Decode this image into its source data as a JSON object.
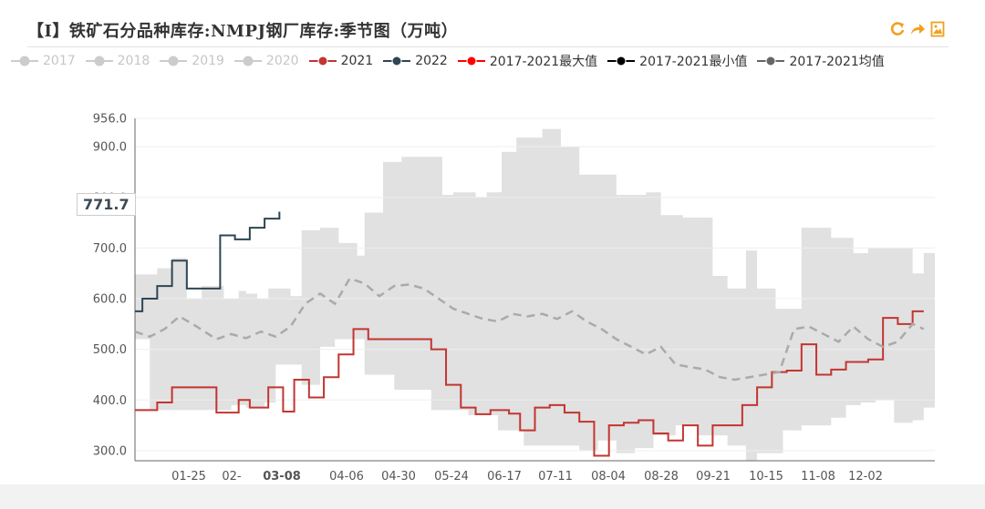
{
  "title": "【I】铁矿石分品种库存:NMPJ钢厂库存:季节图（万吨）",
  "toolbar": {
    "icons": [
      "refresh-icon",
      "share-icon",
      "save-image-icon"
    ],
    "color": "#f0a020"
  },
  "legend": [
    {
      "name": "2017",
      "color": "#cccccc",
      "active": false
    },
    {
      "name": "2018",
      "color": "#cccccc",
      "active": false
    },
    {
      "name": "2019",
      "color": "#cccccc",
      "active": false
    },
    {
      "name": "2020",
      "color": "#cccccc",
      "active": false
    },
    {
      "name": "2021",
      "color": "#c23531",
      "active": true
    },
    {
      "name": "2022",
      "color": "#2f4554",
      "active": true
    },
    {
      "name": "2017-2021最大值",
      "color": "#ff0000",
      "active": true
    },
    {
      "name": "2017-2021最小值",
      "color": "#000000",
      "active": true
    },
    {
      "name": "2017-2021均值",
      "color": "#666666",
      "active": true
    }
  ],
  "tooltip": {
    "value": "771.7"
  },
  "chart_data": {
    "type": "line",
    "x_axis": {
      "tick_labels": [
        "01-25",
        "02-",
        "03-08",
        "04-06",
        "04-30",
        "05-24",
        "06-17",
        "07-11",
        "08-04",
        "08-28",
        "09-21",
        "10-15",
        "11-08",
        "12-02"
      ],
      "highlight": "03-08"
    },
    "y_axis": {
      "ylim": [
        280,
        956
      ],
      "ticks": [
        300.0,
        400.0,
        500.0,
        600.0,
        700.0,
        800.0,
        900.0,
        956.0
      ]
    },
    "band_max": [
      [
        0,
        648
      ],
      [
        6,
        660
      ],
      [
        10,
        680
      ],
      [
        14,
        600
      ],
      [
        18,
        625
      ],
      [
        24,
        600
      ],
      [
        28,
        615
      ],
      [
        30,
        610
      ],
      [
        33,
        600
      ],
      [
        36,
        620
      ],
      [
        42,
        605
      ],
      [
        45,
        735
      ],
      [
        50,
        740
      ],
      [
        55,
        710
      ],
      [
        60,
        685
      ],
      [
        62,
        770
      ],
      [
        67,
        870
      ],
      [
        72,
        880
      ],
      [
        78,
        880
      ],
      [
        83,
        805
      ],
      [
        86,
        810
      ],
      [
        92,
        800
      ],
      [
        95,
        810
      ],
      [
        99,
        890
      ],
      [
        103,
        918
      ],
      [
        110,
        935
      ],
      [
        115,
        900
      ],
      [
        120,
        845
      ],
      [
        126,
        845
      ],
      [
        130,
        805
      ],
      [
        138,
        810
      ],
      [
        142,
        765
      ],
      [
        148,
        760
      ],
      [
        156,
        645
      ],
      [
        160,
        620
      ],
      [
        165,
        695
      ],
      [
        168,
        620
      ],
      [
        173,
        580
      ],
      [
        180,
        740
      ],
      [
        188,
        720
      ],
      [
        194,
        690
      ],
      [
        198,
        700
      ],
      [
        205,
        700
      ],
      [
        210,
        650
      ],
      [
        213,
        690
      ],
      [
        216,
        690
      ]
    ],
    "band_min": [
      [
        0,
        520
      ],
      [
        4,
        380
      ],
      [
        10,
        380
      ],
      [
        20,
        380
      ],
      [
        26,
        390
      ],
      [
        30,
        385
      ],
      [
        35,
        395
      ],
      [
        38,
        470
      ],
      [
        45,
        430
      ],
      [
        50,
        505
      ],
      [
        54,
        520
      ],
      [
        62,
        450
      ],
      [
        70,
        420
      ],
      [
        80,
        380
      ],
      [
        90,
        370
      ],
      [
        98,
        340
      ],
      [
        105,
        310
      ],
      [
        110,
        310
      ],
      [
        120,
        300
      ],
      [
        125,
        320
      ],
      [
        130,
        295
      ],
      [
        135,
        305
      ],
      [
        140,
        330
      ],
      [
        146,
        350
      ],
      [
        152,
        330
      ],
      [
        160,
        310
      ],
      [
        165,
        280
      ],
      [
        168,
        295
      ],
      [
        175,
        340
      ],
      [
        180,
        350
      ],
      [
        188,
        365
      ],
      [
        192,
        390
      ],
      [
        196,
        395
      ],
      [
        200,
        400
      ],
      [
        205,
        355
      ],
      [
        210,
        360
      ],
      [
        213,
        385
      ],
      [
        216,
        400
      ]
    ],
    "series": [
      {
        "name": "2021",
        "color": "#c23531",
        "points": [
          [
            0,
            380
          ],
          [
            6,
            395
          ],
          [
            10,
            425
          ],
          [
            22,
            375
          ],
          [
            28,
            400
          ],
          [
            31,
            385
          ],
          [
            36,
            425
          ],
          [
            40,
            377
          ],
          [
            43,
            440
          ],
          [
            47,
            405
          ],
          [
            51,
            445
          ],
          [
            55,
            490
          ],
          [
            59,
            540
          ],
          [
            63,
            520
          ],
          [
            72,
            520
          ],
          [
            80,
            500
          ],
          [
            84,
            430
          ],
          [
            88,
            385
          ],
          [
            92,
            372
          ],
          [
            96,
            380
          ],
          [
            101,
            373
          ],
          [
            104,
            340
          ],
          [
            108,
            385
          ],
          [
            112,
            390
          ],
          [
            116,
            375
          ],
          [
            120,
            357
          ],
          [
            124,
            290
          ],
          [
            128,
            350
          ],
          [
            132,
            355
          ],
          [
            136,
            360
          ],
          [
            140,
            334
          ],
          [
            144,
            320
          ],
          [
            148,
            350
          ],
          [
            152,
            310
          ],
          [
            156,
            350
          ],
          [
            164,
            390
          ],
          [
            168,
            425
          ],
          [
            172,
            455
          ],
          [
            176,
            458
          ],
          [
            180,
            510
          ],
          [
            184,
            450
          ],
          [
            188,
            460
          ],
          [
            192,
            475
          ],
          [
            198,
            480
          ],
          [
            202,
            562
          ],
          [
            206,
            550
          ],
          [
            210,
            575
          ],
          [
            213,
            575
          ]
        ]
      },
      {
        "name": "2022",
        "color": "#2f4554",
        "points": [
          [
            0,
            575
          ],
          [
            2,
            600
          ],
          [
            6,
            625
          ],
          [
            10,
            675
          ],
          [
            14,
            620
          ],
          [
            22,
            620
          ],
          [
            23,
            725
          ],
          [
            27,
            717
          ],
          [
            31,
            740
          ],
          [
            35,
            758
          ],
          [
            39,
            771.7
          ]
        ]
      },
      {
        "name": "2017-2021均值",
        "color": "#aaaaaa",
        "points": [
          [
            0,
            535
          ],
          [
            4,
            525
          ],
          [
            8,
            540
          ],
          [
            12,
            565
          ],
          [
            16,
            548
          ],
          [
            22,
            520
          ],
          [
            26,
            530
          ],
          [
            30,
            522
          ],
          [
            34,
            535
          ],
          [
            38,
            525
          ],
          [
            42,
            545
          ],
          [
            46,
            590
          ],
          [
            50,
            610
          ],
          [
            54,
            590
          ],
          [
            58,
            640
          ],
          [
            62,
            630
          ],
          [
            66,
            605
          ],
          [
            70,
            625
          ],
          [
            74,
            628
          ],
          [
            78,
            620
          ],
          [
            82,
            600
          ],
          [
            86,
            580
          ],
          [
            90,
            570
          ],
          [
            94,
            560
          ],
          [
            98,
            555
          ],
          [
            102,
            570
          ],
          [
            106,
            565
          ],
          [
            110,
            570
          ],
          [
            114,
            560
          ],
          [
            118,
            575
          ],
          [
            122,
            555
          ],
          [
            126,
            540
          ],
          [
            130,
            520
          ],
          [
            134,
            505
          ],
          [
            138,
            490
          ],
          [
            142,
            505
          ],
          [
            146,
            470
          ],
          [
            150,
            465
          ],
          [
            154,
            460
          ],
          [
            158,
            445
          ],
          [
            162,
            440
          ],
          [
            166,
            445
          ],
          [
            170,
            450
          ],
          [
            174,
            455
          ],
          [
            178,
            540
          ],
          [
            182,
            545
          ],
          [
            186,
            530
          ],
          [
            190,
            515
          ],
          [
            194,
            545
          ],
          [
            198,
            520
          ],
          [
            202,
            505
          ],
          [
            206,
            515
          ],
          [
            210,
            550
          ],
          [
            213,
            540
          ]
        ]
      }
    ]
  }
}
